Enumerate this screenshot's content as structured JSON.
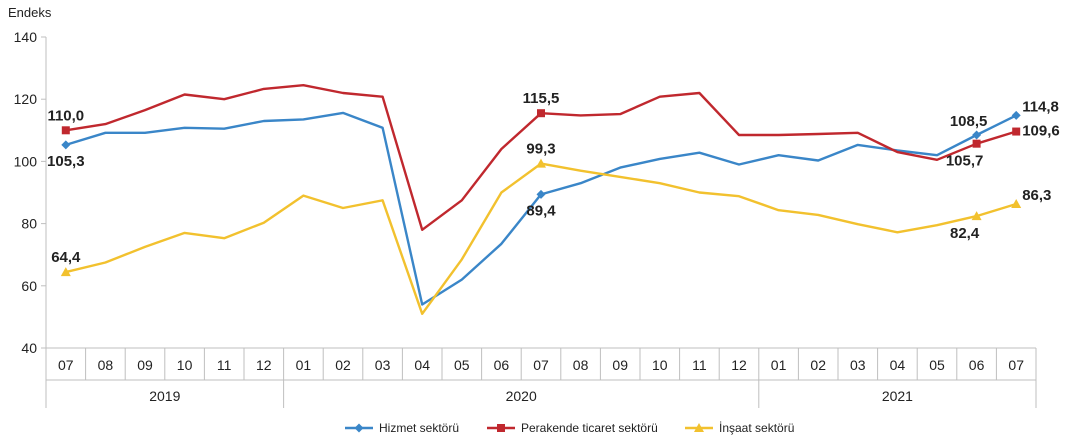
{
  "chart_data": {
    "type": "line",
    "ylabel": "Endeks",
    "ylim": [
      40,
      140
    ],
    "yticks": [
      "40",
      "60",
      "80",
      "100",
      "120",
      "140"
    ],
    "months": [
      "07",
      "08",
      "09",
      "10",
      "11",
      "12",
      "01",
      "02",
      "03",
      "04",
      "05",
      "06",
      "07",
      "08",
      "09",
      "10",
      "11",
      "12",
      "01",
      "02",
      "03",
      "04",
      "05",
      "06",
      "07"
    ],
    "years": [
      {
        "label": "2019",
        "start": 0,
        "end": 5
      },
      {
        "label": "2020",
        "start": 6,
        "end": 17
      },
      {
        "label": "2021",
        "start": 18,
        "end": 24
      }
    ],
    "series": [
      {
        "name": "Hizmet sektörü",
        "color": "#3a86c8",
        "marker": "diamond",
        "values": [
          105.3,
          109.2,
          109.2,
          110.8,
          110.5,
          113.0,
          113.5,
          115.6,
          110.8,
          54.0,
          62.0,
          73.5,
          89.4,
          93.0,
          98.0,
          100.8,
          102.8,
          99.0,
          102.0,
          100.3,
          105.3,
          103.5,
          102.0,
          108.5,
          114.8
        ]
      },
      {
        "name": "Perakende ticaret sektörü",
        "color": "#c0282e",
        "marker": "square",
        "values": [
          110.0,
          112.0,
          116.5,
          121.5,
          120.0,
          123.3,
          124.5,
          122.0,
          120.8,
          78.0,
          87.5,
          104.0,
          115.5,
          114.8,
          115.2,
          120.8,
          122.0,
          108.5,
          108.5,
          108.8,
          109.2,
          103.0,
          100.5,
          105.7,
          109.6
        ]
      },
      {
        "name": "İnşaat sektörü",
        "color": "#f2c12e",
        "marker": "triangle",
        "values": [
          64.4,
          67.5,
          72.5,
          77.0,
          75.3,
          80.3,
          89.0,
          85.0,
          87.5,
          51.0,
          68.5,
          90.0,
          99.3,
          97.0,
          95.0,
          93.0,
          90.0,
          88.8,
          84.3,
          82.8,
          79.8,
          77.2,
          79.5,
          82.4,
          86.3
        ]
      }
    ],
    "data_labels": [
      {
        "series": 1,
        "index": 0,
        "text": "110,0",
        "pos": "above"
      },
      {
        "series": 0,
        "index": 0,
        "text": "105,3",
        "pos": "below"
      },
      {
        "series": 2,
        "index": 0,
        "text": "64,4",
        "pos": "above"
      },
      {
        "series": 1,
        "index": 12,
        "text": "115,5",
        "pos": "above"
      },
      {
        "series": 2,
        "index": 12,
        "text": "99,3",
        "pos": "above"
      },
      {
        "series": 0,
        "index": 12,
        "text": "89,4",
        "pos": "below"
      },
      {
        "series": 0,
        "index": 23,
        "text": "108,5",
        "pos": "above-left"
      },
      {
        "series": 1,
        "index": 23,
        "text": "105,7",
        "pos": "below-left"
      },
      {
        "series": 2,
        "index": 23,
        "text": "82,4",
        "pos": "below-left"
      },
      {
        "series": 0,
        "index": 24,
        "text": "114,8",
        "pos": "right-up"
      },
      {
        "series": 1,
        "index": 24,
        "text": "109,6",
        "pos": "right"
      },
      {
        "series": 2,
        "index": 24,
        "text": "86,3",
        "pos": "right-up"
      }
    ],
    "legend": "bottom",
    "grid": false
  }
}
